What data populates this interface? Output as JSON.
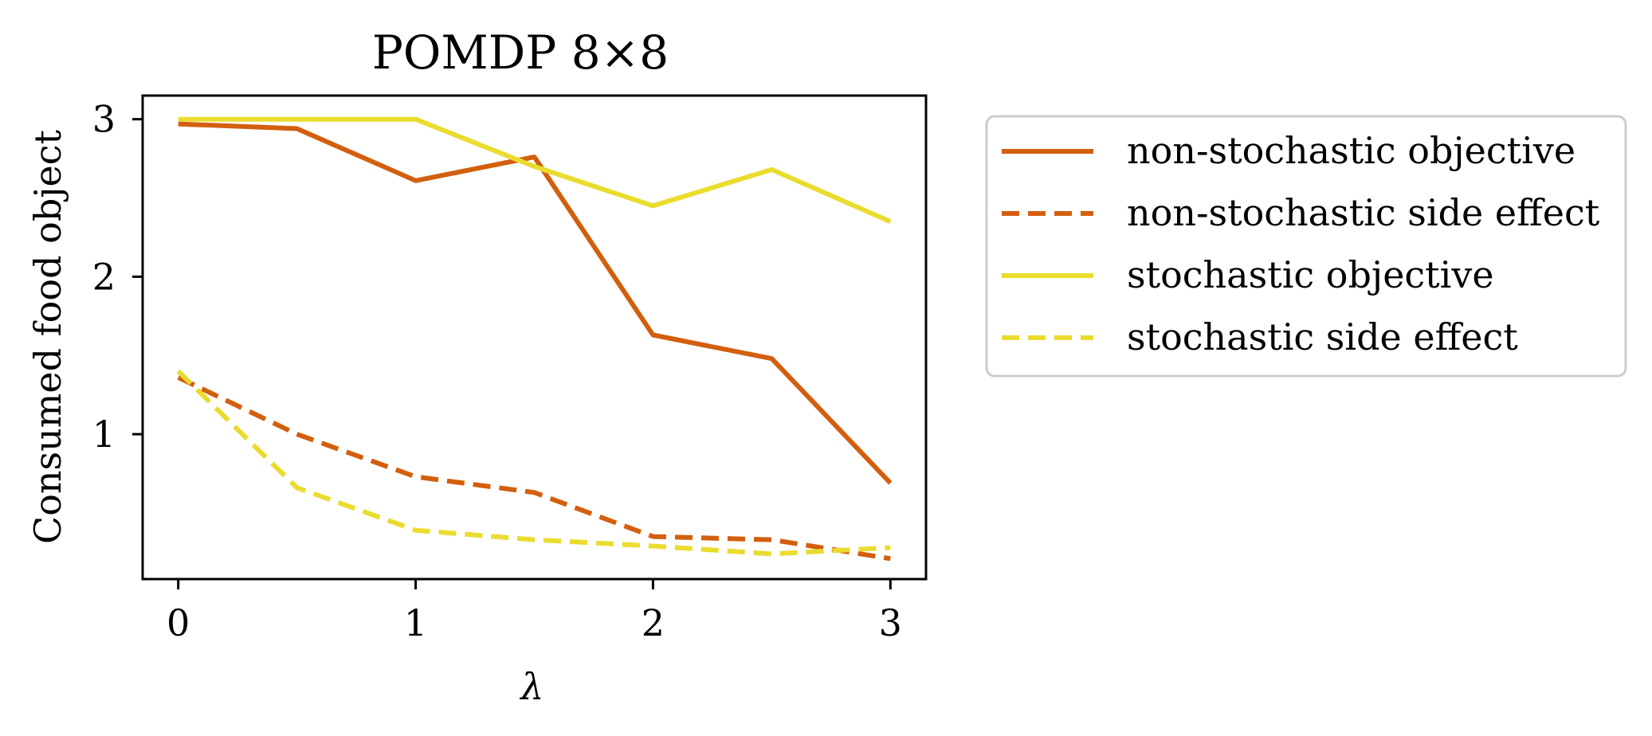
{
  "chart_data": {
    "type": "line",
    "title": "POMDP 8×8",
    "xlabel": "λ",
    "ylabel": "Consumed food object",
    "xlim": [
      -0.15,
      3.15
    ],
    "ylim": [
      0.08,
      3.15
    ],
    "xticks": [
      "0",
      "1",
      "2",
      "3"
    ],
    "yticks": [
      "1",
      "2",
      "3"
    ],
    "grid": false,
    "legend_position": "right, outside",
    "x": [
      0,
      0.5,
      1,
      1.5,
      2,
      2.5,
      3
    ],
    "series": [
      {
        "name": "non-stochastic objective",
        "color": "#d35f0e",
        "style": "solid",
        "values": [
          2.97,
          2.94,
          2.61,
          2.76,
          1.63,
          1.48,
          0.69
        ]
      },
      {
        "name": "non-stochastic side effect",
        "color": "#d35f0e",
        "style": "dashed",
        "values": [
          1.36,
          1.0,
          0.73,
          0.63,
          0.35,
          0.33,
          0.21
        ]
      },
      {
        "name": "stochastic objective",
        "color": "#eadc2e",
        "style": "solid",
        "values": [
          3.0,
          3.0,
          3.0,
          2.7,
          2.45,
          2.68,
          2.35
        ]
      },
      {
        "name": "stochastic side effect",
        "color": "#eadc2e",
        "style": "dashed",
        "values": [
          1.4,
          0.66,
          0.39,
          0.33,
          0.29,
          0.24,
          0.28
        ]
      }
    ]
  }
}
